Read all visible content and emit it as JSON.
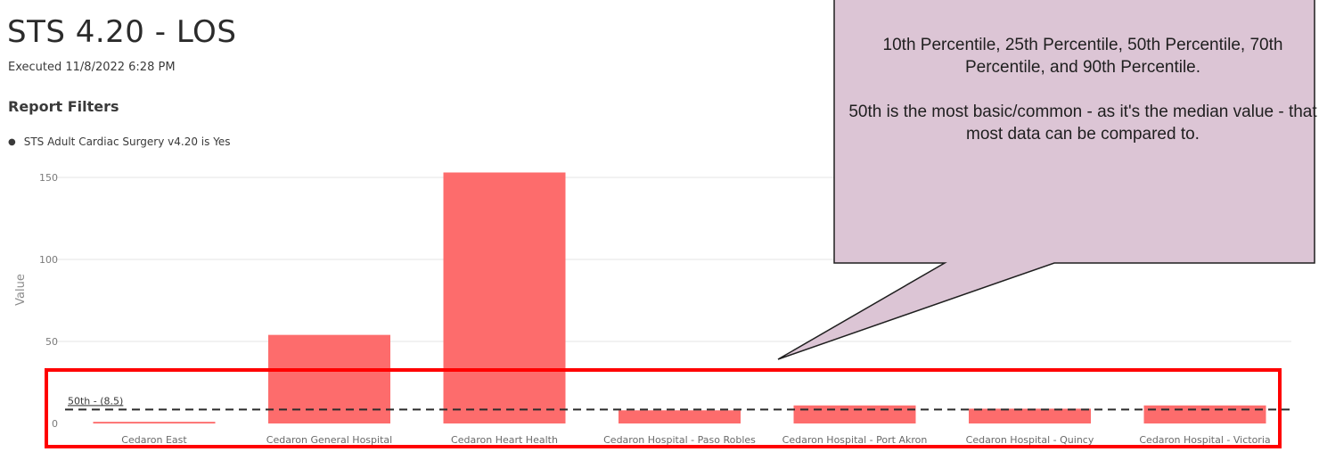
{
  "report": {
    "title": "STS 4.20 - LOS",
    "executed": "Executed 11/8/2022 6:28 PM",
    "filters_heading": "Report Filters",
    "filters": [
      "STS Adult Cardiac Surgery v4.20 is Yes"
    ]
  },
  "callout": {
    "line1": "10th Percentile, 25th Percentile, 50th Percentile, 70th Percentile, and 90th Percentile.",
    "line2": "50th is the most basic/common - as it's the median value - that most data can be compared to."
  },
  "colors": {
    "bar": "#fd6c6c",
    "callout_fill": "#dcc5d5",
    "highlight": "#ff0000",
    "reference_line": "#2b2b2b"
  },
  "chart_data": {
    "type": "bar",
    "categories": [
      "Cedaron East",
      "Cedaron General Hospital",
      "Cedaron Heart Health",
      "Cedaron Hospital - Paso Robles",
      "Cedaron Hospital - Port Akron",
      "Cedaron Hospital - Quincy",
      "Cedaron Hospital - Victoria"
    ],
    "values": [
      1,
      54,
      153,
      8,
      11,
      9,
      11
    ],
    "ylabel": "Value",
    "ylim": [
      0,
      160
    ],
    "yticks": [
      0,
      50,
      100,
      150
    ],
    "grid": true,
    "reference_line": {
      "label": "50th - (8.5)",
      "value": 8.5
    }
  }
}
